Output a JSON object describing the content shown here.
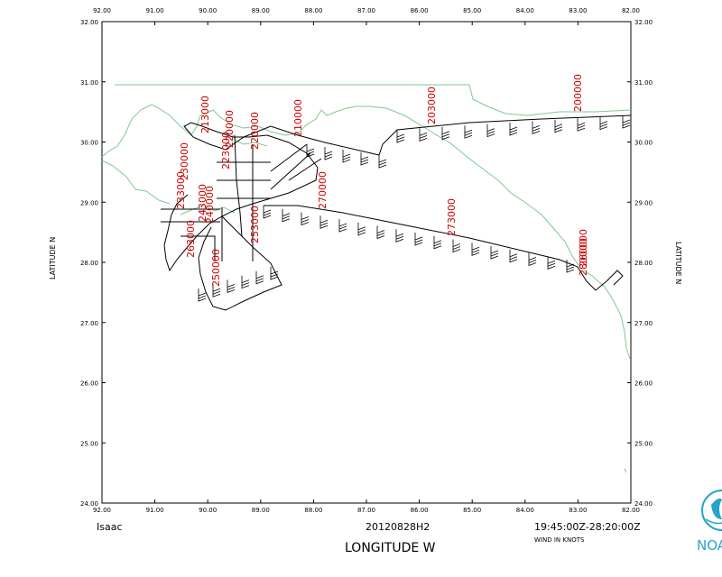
{
  "map": {
    "storm_name": "Isaac",
    "cycle_id": "20120828H2",
    "time_range": "19:45:00Z-28:20:00Z",
    "wind_units": "WIND IN KNOTS",
    "x_axis_title": "LONGITUDE   W",
    "y_axis_title": "LATITUDE   N",
    "lon_range": [
      -92.0,
      -82.0
    ],
    "lat_range": [
      24.0,
      32.0
    ],
    "lon_ticks": [
      "92.00",
      "91.00",
      "90.00",
      "89.00",
      "88.00",
      "87.00",
      "86.00",
      "85.00",
      "84.00",
      "83.00",
      "82.00"
    ],
    "lat_ticks": [
      "24.00",
      "25.00",
      "26.00",
      "27.00",
      "28.00",
      "29.00",
      "30.00",
      "31.00",
      "32.00"
    ],
    "colors": {
      "coast": "#7fc88f",
      "track": "#000000",
      "time_labels": "#cc0000",
      "logo": "#29a3c7"
    },
    "time_labels": [
      {
        "text": "203000"
      },
      {
        "text": "200000"
      },
      {
        "text": "210000"
      },
      {
        "text": "213000"
      },
      {
        "text": "220000"
      },
      {
        "text": "220000"
      },
      {
        "text": "223000"
      },
      {
        "text": "230000"
      },
      {
        "text": "233000"
      },
      {
        "text": "240000"
      },
      {
        "text": "243000"
      },
      {
        "text": "250000"
      },
      {
        "text": "253000"
      },
      {
        "text": "260000"
      },
      {
        "text": "263000"
      },
      {
        "text": "270000"
      },
      {
        "text": "273000"
      },
      {
        "text": "280000"
      }
    ],
    "logo_text": "NOAA"
  }
}
